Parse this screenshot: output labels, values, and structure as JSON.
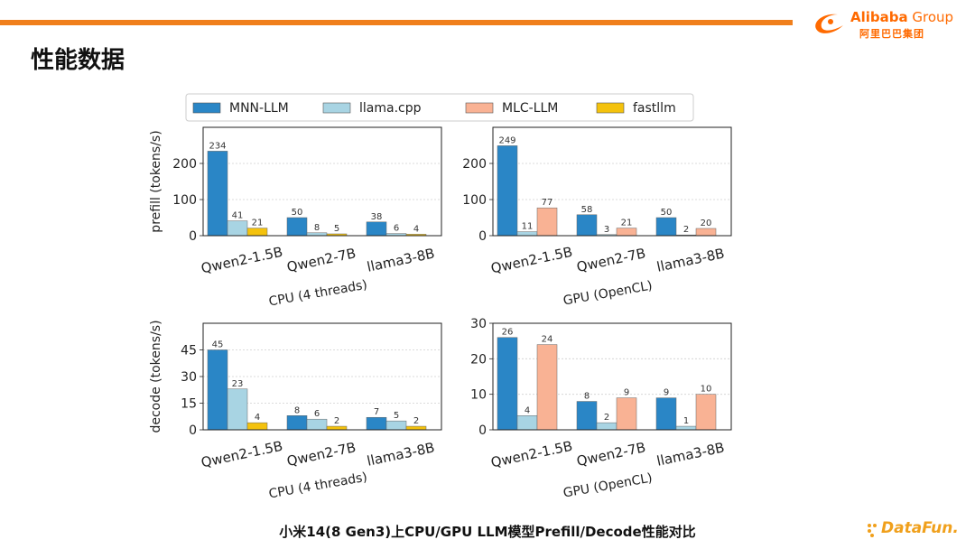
{
  "header": {
    "title": "性能数据",
    "brand_en_bold": "Alibaba",
    "brand_en_light": " Group",
    "brand_cn": "阿里巴巴集团"
  },
  "footer": {
    "caption": "小米14(8 Gen3)上CPU/GPU LLM模型Prefill/Decode性能对比",
    "brand": "DataFun."
  },
  "colors": {
    "accent": "#f07f1c",
    "mnn": "#2a86c6",
    "llama": "#a8d4e3",
    "mlc": "#f9b294",
    "fastllm": "#f4c20d"
  },
  "chart_data": {
    "type": "bar",
    "legend": {
      "placement": "top",
      "entries": [
        {
          "name": "MNN-LLM",
          "color": "#2a86c6"
        },
        {
          "name": "llama.cpp",
          "color": "#a8d4e3"
        },
        {
          "name": "MLC-LLM",
          "color": "#f9b294"
        },
        {
          "name": "fastllm",
          "color": "#f4c20d"
        }
      ]
    },
    "panels": [
      {
        "id": "cpu-prefill",
        "ylabel": "prefill (tokens/s)",
        "xlabel": "",
        "ylim": [
          0,
          300
        ],
        "yticks": [
          0,
          100,
          200
        ],
        "categories": [
          "Qwen2-1.5B",
          "Qwen2-7B",
          "llama3-8B"
        ],
        "series": [
          {
            "name": "MNN-LLM",
            "color": "#2a86c6",
            "values": [
              234,
              50,
              38
            ]
          },
          {
            "name": "llama.cpp",
            "color": "#a8d4e3",
            "values": [
              41,
              8,
              6
            ]
          },
          {
            "name": "fastllm",
            "color": "#f4c20d",
            "values": [
              21,
              5,
              4
            ]
          }
        ]
      },
      {
        "id": "gpu-prefill",
        "ylabel": "",
        "xlabel": "",
        "ylim": [
          0,
          300
        ],
        "yticks": [
          0,
          100,
          200
        ],
        "categories": [
          "Qwen2-1.5B",
          "Qwen2-7B",
          "llama3-8B"
        ],
        "series": [
          {
            "name": "MNN-LLM",
            "color": "#2a86c6",
            "values": [
              249,
              58,
              50
            ]
          },
          {
            "name": "llama.cpp",
            "color": "#a8d4e3",
            "values": [
              11,
              3,
              2
            ]
          },
          {
            "name": "MLC-LLM",
            "color": "#f9b294",
            "values": [
              77,
              21,
              20
            ]
          }
        ]
      },
      {
        "id": "cpu-decode",
        "ylabel": "decode (tokens/s)",
        "xlabel": "CPU (4 threads)",
        "ylim": [
          0,
          60
        ],
        "yticks": [
          0,
          15,
          30,
          45
        ],
        "categories": [
          "Qwen2-1.5B",
          "Qwen2-7B",
          "llama3-8B"
        ],
        "series": [
          {
            "name": "MNN-LLM",
            "color": "#2a86c6",
            "values": [
              45,
              8,
              7
            ]
          },
          {
            "name": "llama.cpp",
            "color": "#a8d4e3",
            "values": [
              23,
              6,
              5
            ]
          },
          {
            "name": "fastllm",
            "color": "#f4c20d",
            "values": [
              4,
              2,
              2
            ]
          }
        ]
      },
      {
        "id": "gpu-decode",
        "ylabel": "",
        "xlabel": "GPU (OpenCL)",
        "ylim": [
          0,
          30
        ],
        "yticks": [
          0,
          10,
          20,
          30
        ],
        "categories": [
          "Qwen2-1.5B",
          "Qwen2-7B",
          "llama3-8B"
        ],
        "series": [
          {
            "name": "MNN-LLM",
            "color": "#2a86c6",
            "values": [
              26,
              8,
              9
            ]
          },
          {
            "name": "llama.cpp",
            "color": "#a8d4e3",
            "values": [
              4,
              2,
              1
            ]
          },
          {
            "name": "MLC-LLM",
            "color": "#f9b294",
            "values": [
              24,
              9,
              10
            ]
          }
        ]
      }
    ],
    "top_xlabels": [
      "CPU (4 threads)",
      "GPU (OpenCL)"
    ]
  }
}
